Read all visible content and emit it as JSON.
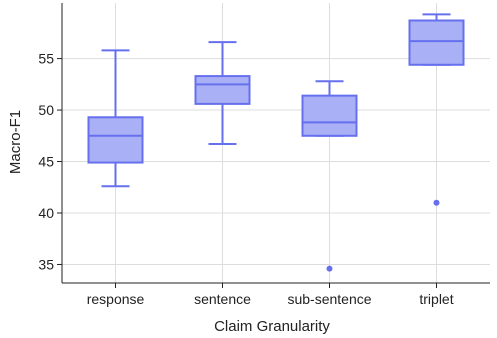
{
  "chart_data": {
    "type": "box",
    "xlabel": "Claim Granularity",
    "ylabel": "Macro-F1",
    "ylim": [
      33.2,
      60.4
    ],
    "yticks": [
      35,
      40,
      45,
      50,
      55
    ],
    "grid": true,
    "categories": [
      "response",
      "sentence",
      "sub-sentence",
      "triplet"
    ],
    "boxes": [
      {
        "category": "response",
        "whisker_low": 42.6,
        "q1": 44.9,
        "median": 47.5,
        "q3": 49.3,
        "whisker_high": 55.8,
        "outliers": []
      },
      {
        "category": "sentence",
        "whisker_low": 46.7,
        "q1": 50.6,
        "median": 52.5,
        "q3": 53.3,
        "whisker_high": 56.6,
        "outliers": []
      },
      {
        "category": "sub-sentence",
        "whisker_low": 47.5,
        "q1": 47.5,
        "median": 48.8,
        "q3": 51.4,
        "whisker_high": 52.8,
        "outliers": [
          34.6
        ]
      },
      {
        "category": "triplet",
        "whisker_low": 54.4,
        "q1": 54.4,
        "median": 56.7,
        "q3": 58.7,
        "whisker_high": 59.3,
        "outliers": [
          41.0
        ]
      }
    ],
    "colors": {
      "box_fill": "#aab0f5",
      "box_stroke": "#6670ee",
      "grid": "#dddddd",
      "axis": "#222222"
    }
  }
}
